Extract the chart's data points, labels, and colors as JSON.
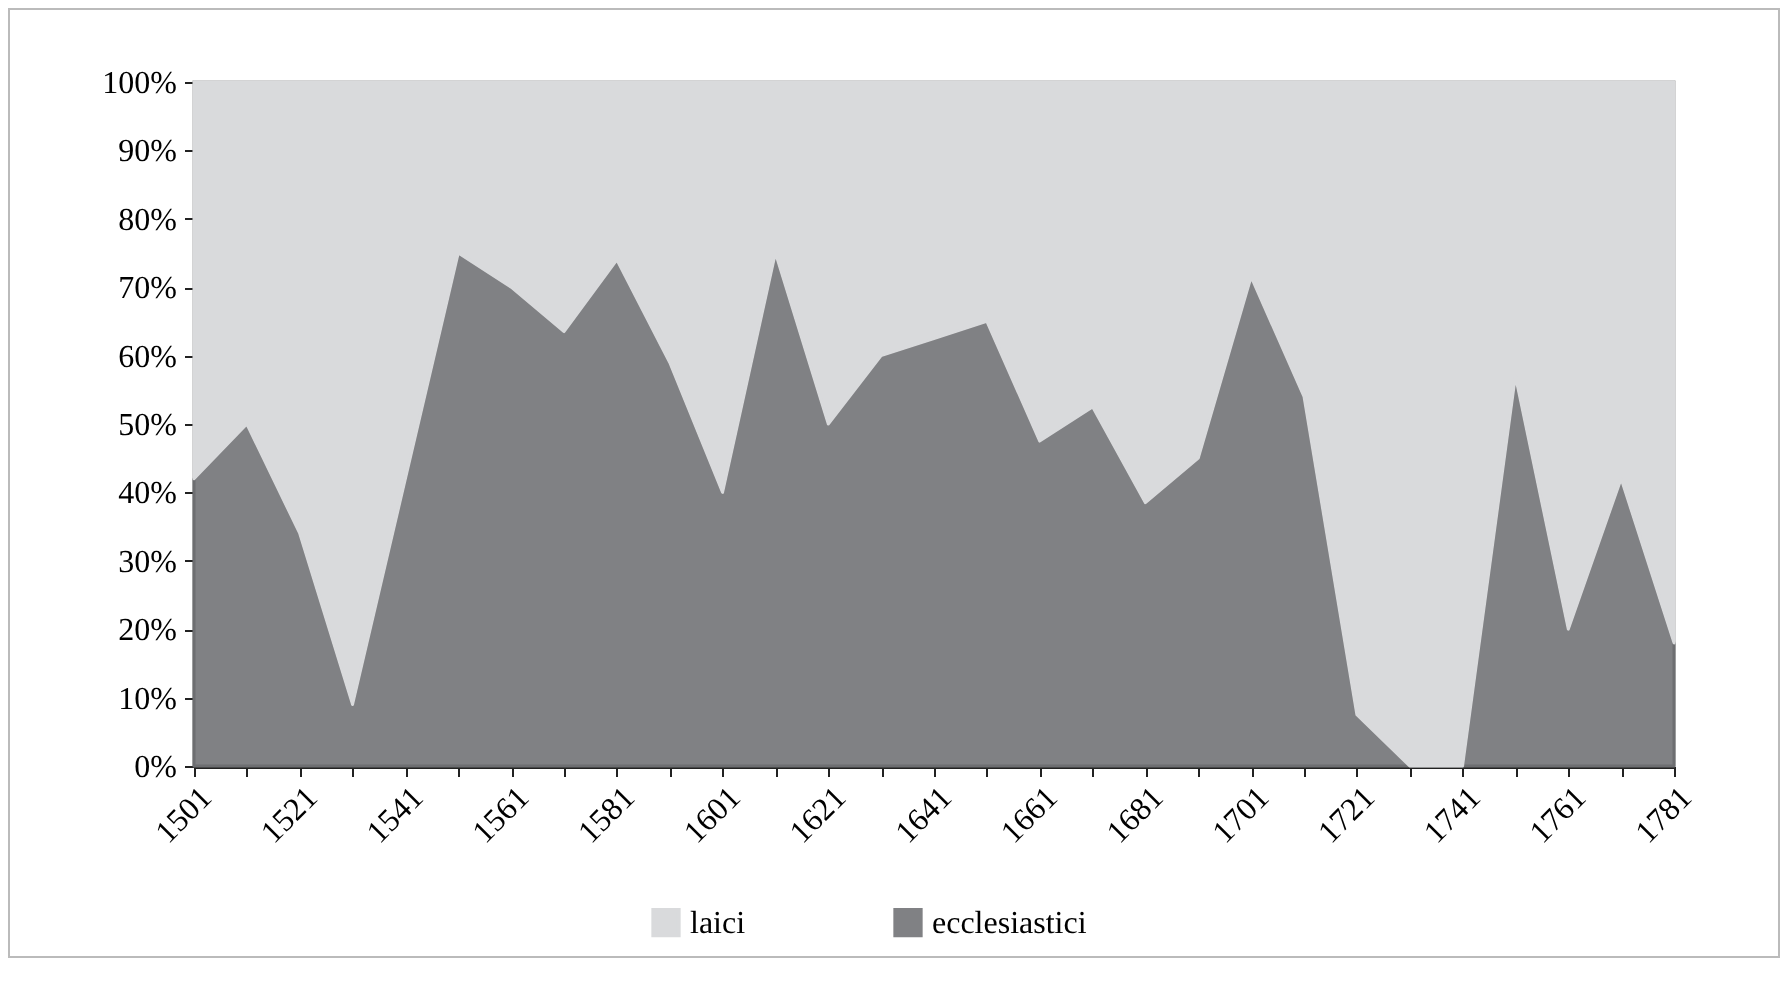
{
  "chart_data": {
    "type": "area",
    "stacked": true,
    "categories": [
      "1501",
      null,
      "1521",
      null,
      "1541",
      null,
      "1561",
      null,
      "1581",
      null,
      "1601",
      null,
      "1621",
      null,
      "1641",
      null,
      "1661",
      null,
      "1681",
      null,
      "1701",
      null,
      "1721",
      null,
      "1741",
      null,
      "1761",
      null,
      "1781"
    ],
    "series": [
      {
        "name": "ecclesiastici",
        "color": "#808184",
        "values": [
          42,
          50,
          34,
          9,
          42,
          75,
          70,
          63.5,
          74,
          59,
          40,
          75,
          50,
          60,
          62.5,
          65,
          47.5,
          52.5,
          38.5,
          45,
          71.5,
          54,
          7.5,
          0,
          0,
          57,
          20,
          42,
          18
        ]
      },
      {
        "name": "laici",
        "color": "#d9dadc",
        "values": [
          58,
          50,
          66,
          91,
          58,
          25,
          30,
          36.5,
          26,
          41,
          60,
          25,
          50,
          40,
          37.5,
          35,
          52.5,
          47.5,
          61.5,
          55,
          28.5,
          46,
          92.5,
          100,
          100,
          43,
          80,
          58,
          82
        ]
      }
    ],
    "ylim": [
      0,
      100
    ],
    "yticks": [
      {
        "value": 0,
        "label": "0%"
      },
      {
        "value": 10,
        "label": "10%"
      },
      {
        "value": 20,
        "label": "20%"
      },
      {
        "value": 30,
        "label": "30%"
      },
      {
        "value": 40,
        "label": "40%"
      },
      {
        "value": 50,
        "label": "50%"
      },
      {
        "value": 60,
        "label": "60%"
      },
      {
        "value": 70,
        "label": "70%"
      },
      {
        "value": 80,
        "label": "80%"
      },
      {
        "value": 90,
        "label": "90%"
      },
      {
        "value": 100,
        "label": "100%"
      }
    ],
    "grid": false,
    "legend": "bottom"
  }
}
